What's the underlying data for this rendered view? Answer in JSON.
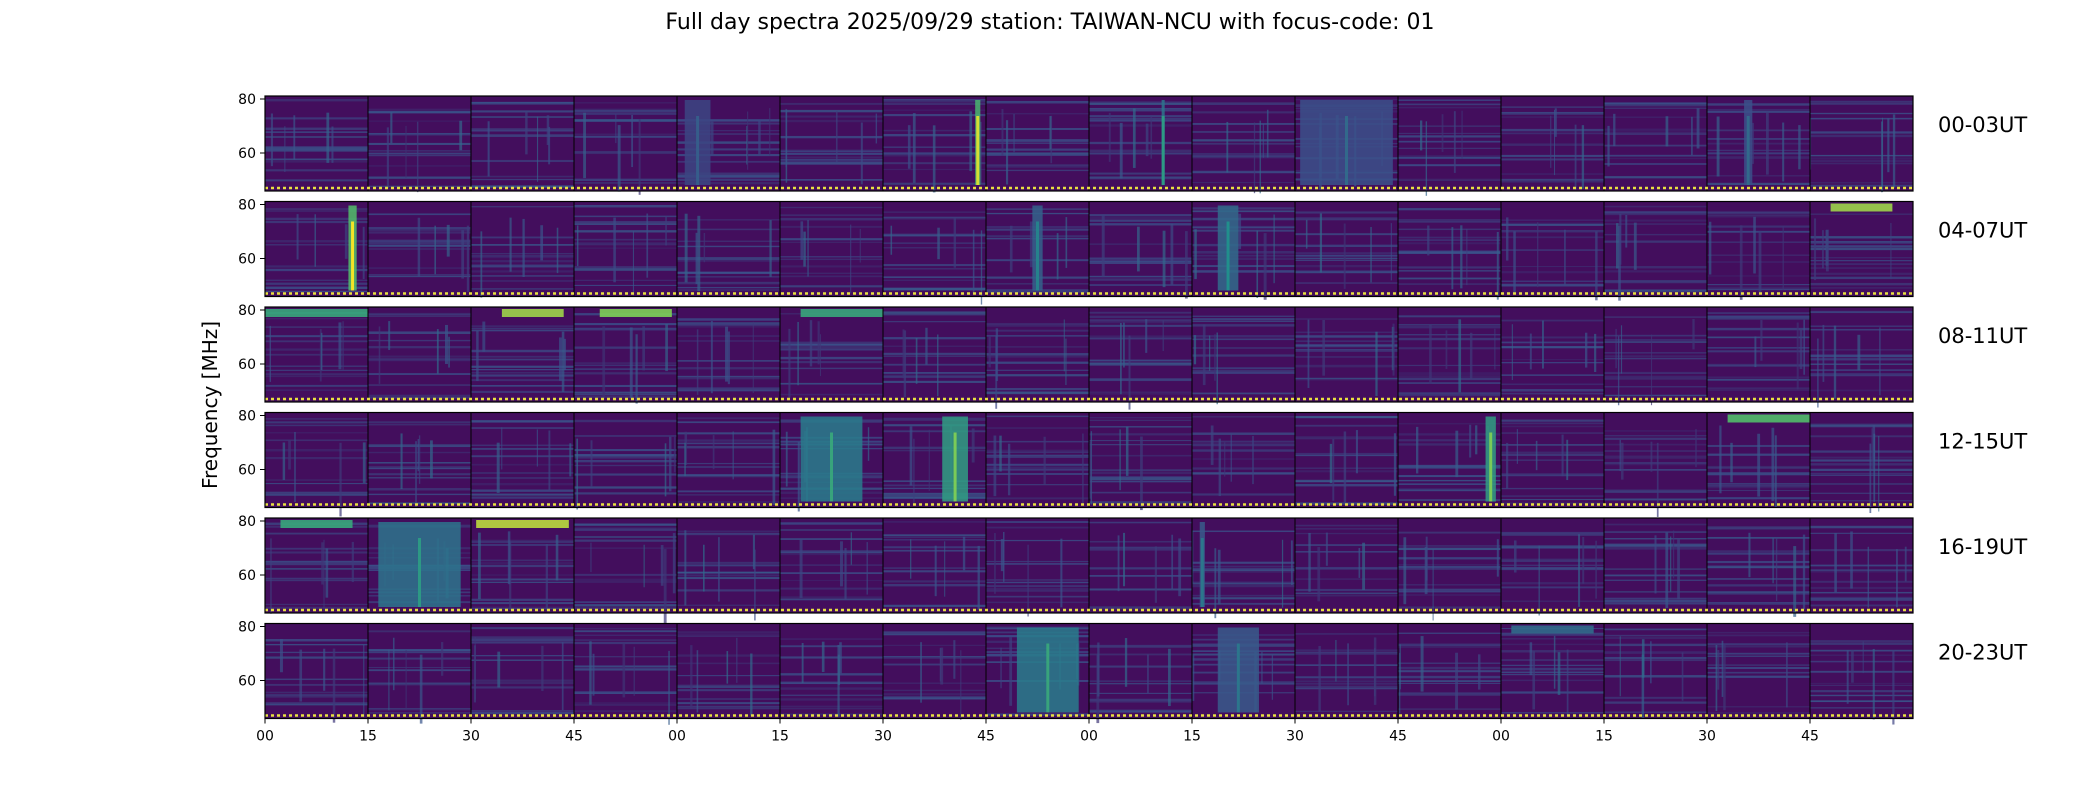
{
  "chart_data": {
    "type": "heatmap",
    "title": "Full day spectra 2025/09/29 station: TAIWAN-NCU with focus-code: 01",
    "ylabel": "Frequency [MHz]",
    "xlabel": "",
    "ylim": [
      45,
      80
    ],
    "y_ticks": [
      "80",
      "60"
    ],
    "x_ticks": [
      "00",
      "15",
      "30",
      "45",
      "00",
      "15",
      "30",
      "45",
      "00",
      "15",
      "30",
      "45",
      "00",
      "15",
      "30",
      "45"
    ],
    "colormap": "viridis",
    "rows": [
      {
        "label": "00-03UT",
        "features": [
          {
            "panel": 6,
            "frac": 0.92,
            "w": 0.05,
            "i": 0.95
          },
          {
            "panel": 8,
            "frac": 0.72,
            "w": 0.03,
            "i": 0.55
          },
          {
            "panel": 4,
            "frac": 0.2,
            "w": 0.25,
            "i": 0.3
          },
          {
            "panel": 10,
            "frac": 0.5,
            "w": 0.9,
            "i": 0.35
          },
          {
            "panel": 14,
            "frac": 0.4,
            "w": 0.08,
            "i": 0.35
          }
        ]
      },
      {
        "label": "04-07UT",
        "features": [
          {
            "panel": 0,
            "frac": 0.85,
            "w": 0.08,
            "i": 1.0
          },
          {
            "panel": 7,
            "frac": 0.5,
            "w": 0.1,
            "i": 0.45
          },
          {
            "panel": 9,
            "frac": 0.35,
            "w": 0.2,
            "i": 0.5
          },
          {
            "panel": 15,
            "frac": 0.5,
            "w": 0.6,
            "i": 0.85,
            "band": "top"
          }
        ]
      },
      {
        "label": "08-11UT",
        "features": [
          {
            "panel": 0,
            "frac": 0.5,
            "w": 1.0,
            "i": 0.6,
            "band": "top"
          },
          {
            "panel": 2,
            "frac": 0.6,
            "w": 0.6,
            "i": 0.85,
            "band": "top"
          },
          {
            "panel": 3,
            "frac": 0.6,
            "w": 0.7,
            "i": 0.8,
            "band": "top"
          },
          {
            "panel": 5,
            "frac": 0.6,
            "w": 0.8,
            "i": 0.6,
            "band": "top"
          }
        ]
      },
      {
        "label": "12-15UT",
        "features": [
          {
            "panel": 5,
            "frac": 0.5,
            "w": 0.6,
            "i": 0.6
          },
          {
            "panel": 6,
            "frac": 0.7,
            "w": 0.25,
            "i": 0.8
          },
          {
            "panel": 11,
            "frac": 0.9,
            "w": 0.1,
            "i": 0.8
          },
          {
            "panel": 14,
            "frac": 0.6,
            "w": 0.8,
            "i": 0.7,
            "band": "top"
          }
        ]
      },
      {
        "label": "16-19UT",
        "features": [
          {
            "panel": 0,
            "frac": 0.5,
            "w": 0.7,
            "i": 0.6,
            "band": "top"
          },
          {
            "panel": 1,
            "frac": 0.5,
            "w": 0.8,
            "i": 0.55
          },
          {
            "panel": 2,
            "frac": 0.5,
            "w": 0.9,
            "i": 0.9,
            "band": "top"
          },
          {
            "panel": 9,
            "frac": 0.1,
            "w": 0.05,
            "i": 0.4
          }
        ]
      },
      {
        "label": "20-23UT",
        "features": [
          {
            "panel": 7,
            "frac": 0.6,
            "w": 0.6,
            "i": 0.6
          },
          {
            "panel": 9,
            "frac": 0.45,
            "w": 0.4,
            "i": 0.4
          },
          {
            "panel": 12,
            "frac": 0.5,
            "w": 0.8,
            "i": 0.35,
            "band": "top"
          }
        ]
      }
    ]
  }
}
